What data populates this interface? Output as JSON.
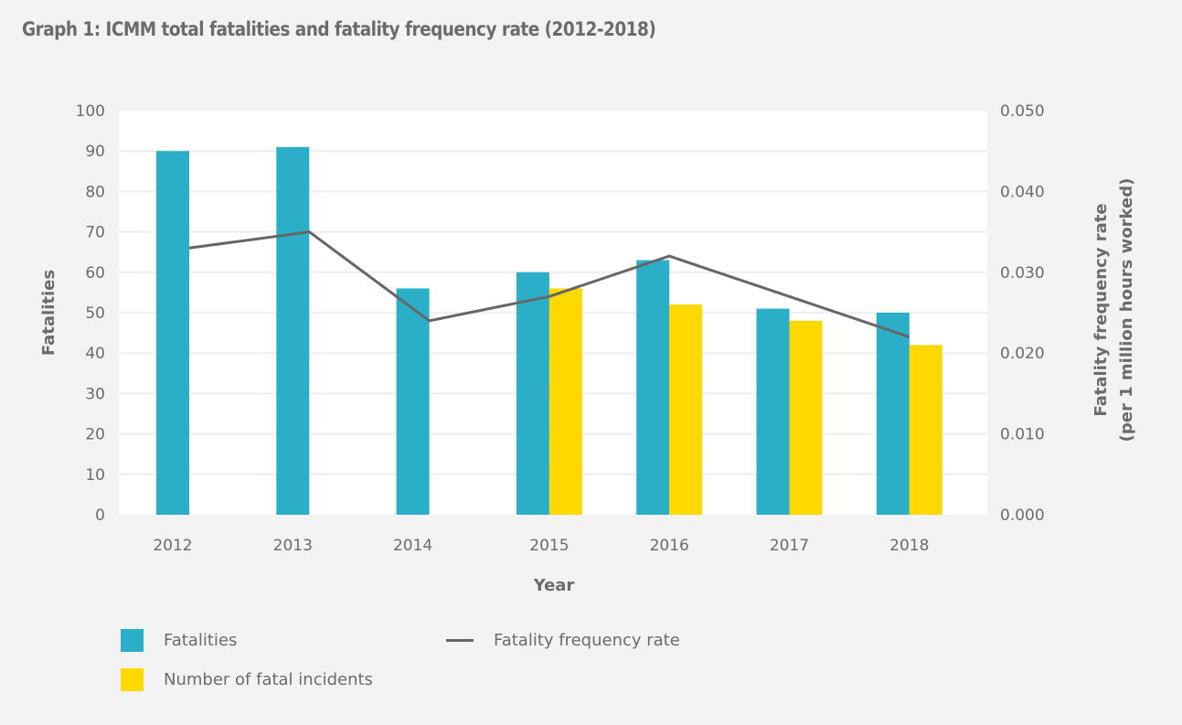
{
  "title": "Graph 1: ICMM total fatalities and fatality frequency rate (2012-2018)",
  "chart_data": {
    "type": "bar",
    "title": "Graph 1: ICMM total fatalities and fatality frequency rate (2012-2018)",
    "categories": [
      "2012",
      "2013",
      "2014",
      "2015",
      "2016",
      "2017",
      "2018"
    ],
    "xlabel": "Year",
    "ylabel": "Fatalities",
    "ylabel_right": [
      "Fatality frequency rate",
      "(per 1 million hours worked)"
    ],
    "ylim": [
      0,
      100
    ],
    "ylim_right": [
      0,
      0.05
    ],
    "yticks": [
      "0",
      "10",
      "20",
      "30",
      "40",
      "50",
      "60",
      "70",
      "80",
      "90",
      "100"
    ],
    "yticks_right": [
      "0.000",
      "0.010",
      "0.020",
      "0.030",
      "0.040",
      "0.050"
    ],
    "grid": true,
    "legend_position": "bottom-left",
    "series": [
      {
        "name": "Fatalities",
        "type": "bar",
        "axis": "left",
        "color": "#2bafc8",
        "values": [
          90,
          91,
          56,
          60,
          63,
          51,
          50
        ]
      },
      {
        "name": "Number of fatal incidents",
        "type": "bar",
        "axis": "left",
        "color": "#fed900",
        "values": [
          null,
          null,
          null,
          56,
          52,
          48,
          42
        ]
      },
      {
        "name": "Fatality frequency rate",
        "type": "line",
        "axis": "right",
        "color": "#666666",
        "values": [
          0.033,
          0.035,
          0.024,
          0.027,
          0.032,
          0.027,
          0.022
        ]
      }
    ]
  },
  "legend": [
    {
      "label": "Fatalities",
      "kind": "swatch",
      "color": "#2bafc8"
    },
    {
      "label": "Number of fatal incidents",
      "kind": "swatch",
      "color": "#fed900"
    },
    {
      "label": "Fatality frequency rate",
      "kind": "line",
      "color": "#666666"
    }
  ]
}
